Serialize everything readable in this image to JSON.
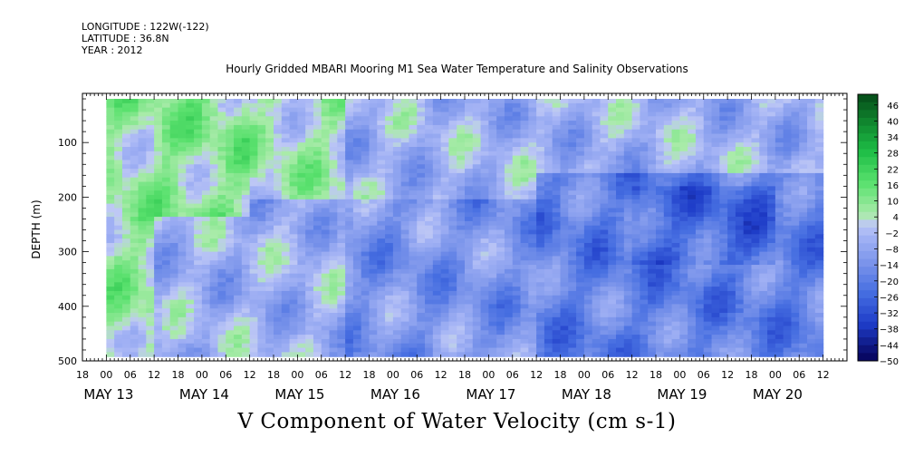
{
  "header": {
    "longitude": "LONGITUDE : 122W(-122)",
    "latitude": "LATITUDE : 36.8N",
    "year": "YEAR : 2012"
  },
  "chart_data": {
    "type": "heatmap",
    "title": "Hourly Gridded MBARI Mooring M1 Sea Water Temperature and Salinity Observations",
    "variable_title": "V Component of Water Velocity (cm s-1)",
    "ylabel": "DEPTH (m)",
    "y_ticks": [
      100,
      200,
      300,
      400,
      500
    ],
    "ylim": [
      500,
      10
    ],
    "data_depth_range": [
      20,
      485
    ],
    "x_hour_ticks": [
      "18",
      "00",
      "06",
      "12",
      "18",
      "00",
      "06",
      "12",
      "18",
      "00",
      "06",
      "12",
      "18",
      "00",
      "06",
      "12",
      "18",
      "00",
      "06",
      "12",
      "18",
      "00",
      "06",
      "12",
      "18",
      "00",
      "06",
      "12",
      "18",
      "00",
      "06",
      "12"
    ],
    "x_day_labels": [
      "MAY 13",
      "MAY 14",
      "MAY 15",
      "MAY 16",
      "MAY 17",
      "MAY 18",
      "MAY 19",
      "MAY 20"
    ],
    "data_start_hour": 0,
    "data_end_hour": 180,
    "colorbar": {
      "labels": [
        "46",
        "40",
        "34",
        "28",
        "22",
        "16",
        "10",
        "4",
        "-2",
        "-8",
        "-14",
        "-20",
        "-26",
        "-32",
        "-38",
        "-44",
        "-50"
      ],
      "range": [
        -50,
        50
      ],
      "step": 3
    },
    "regions": [
      {
        "hours": [
          0,
          12
        ],
        "depth": [
          20,
          485
        ],
        "mean_v": 6
      },
      {
        "hours": [
          12,
          36
        ],
        "depth": [
          20,
          230
        ],
        "mean_v": 8
      },
      {
        "hours": [
          36,
          60
        ],
        "depth": [
          20,
          200
        ],
        "mean_v": 4
      },
      {
        "hours": [
          60,
          108
        ],
        "depth": [
          200,
          485
        ],
        "mean_v": -14
      },
      {
        "hours": [
          108,
          180
        ],
        "depth": [
          150,
          485
        ],
        "mean_v": -20
      },
      {
        "hours": [
          132,
          168
        ],
        "depth": [
          180,
          320
        ],
        "mean_v": -26
      }
    ],
    "grid": false
  }
}
